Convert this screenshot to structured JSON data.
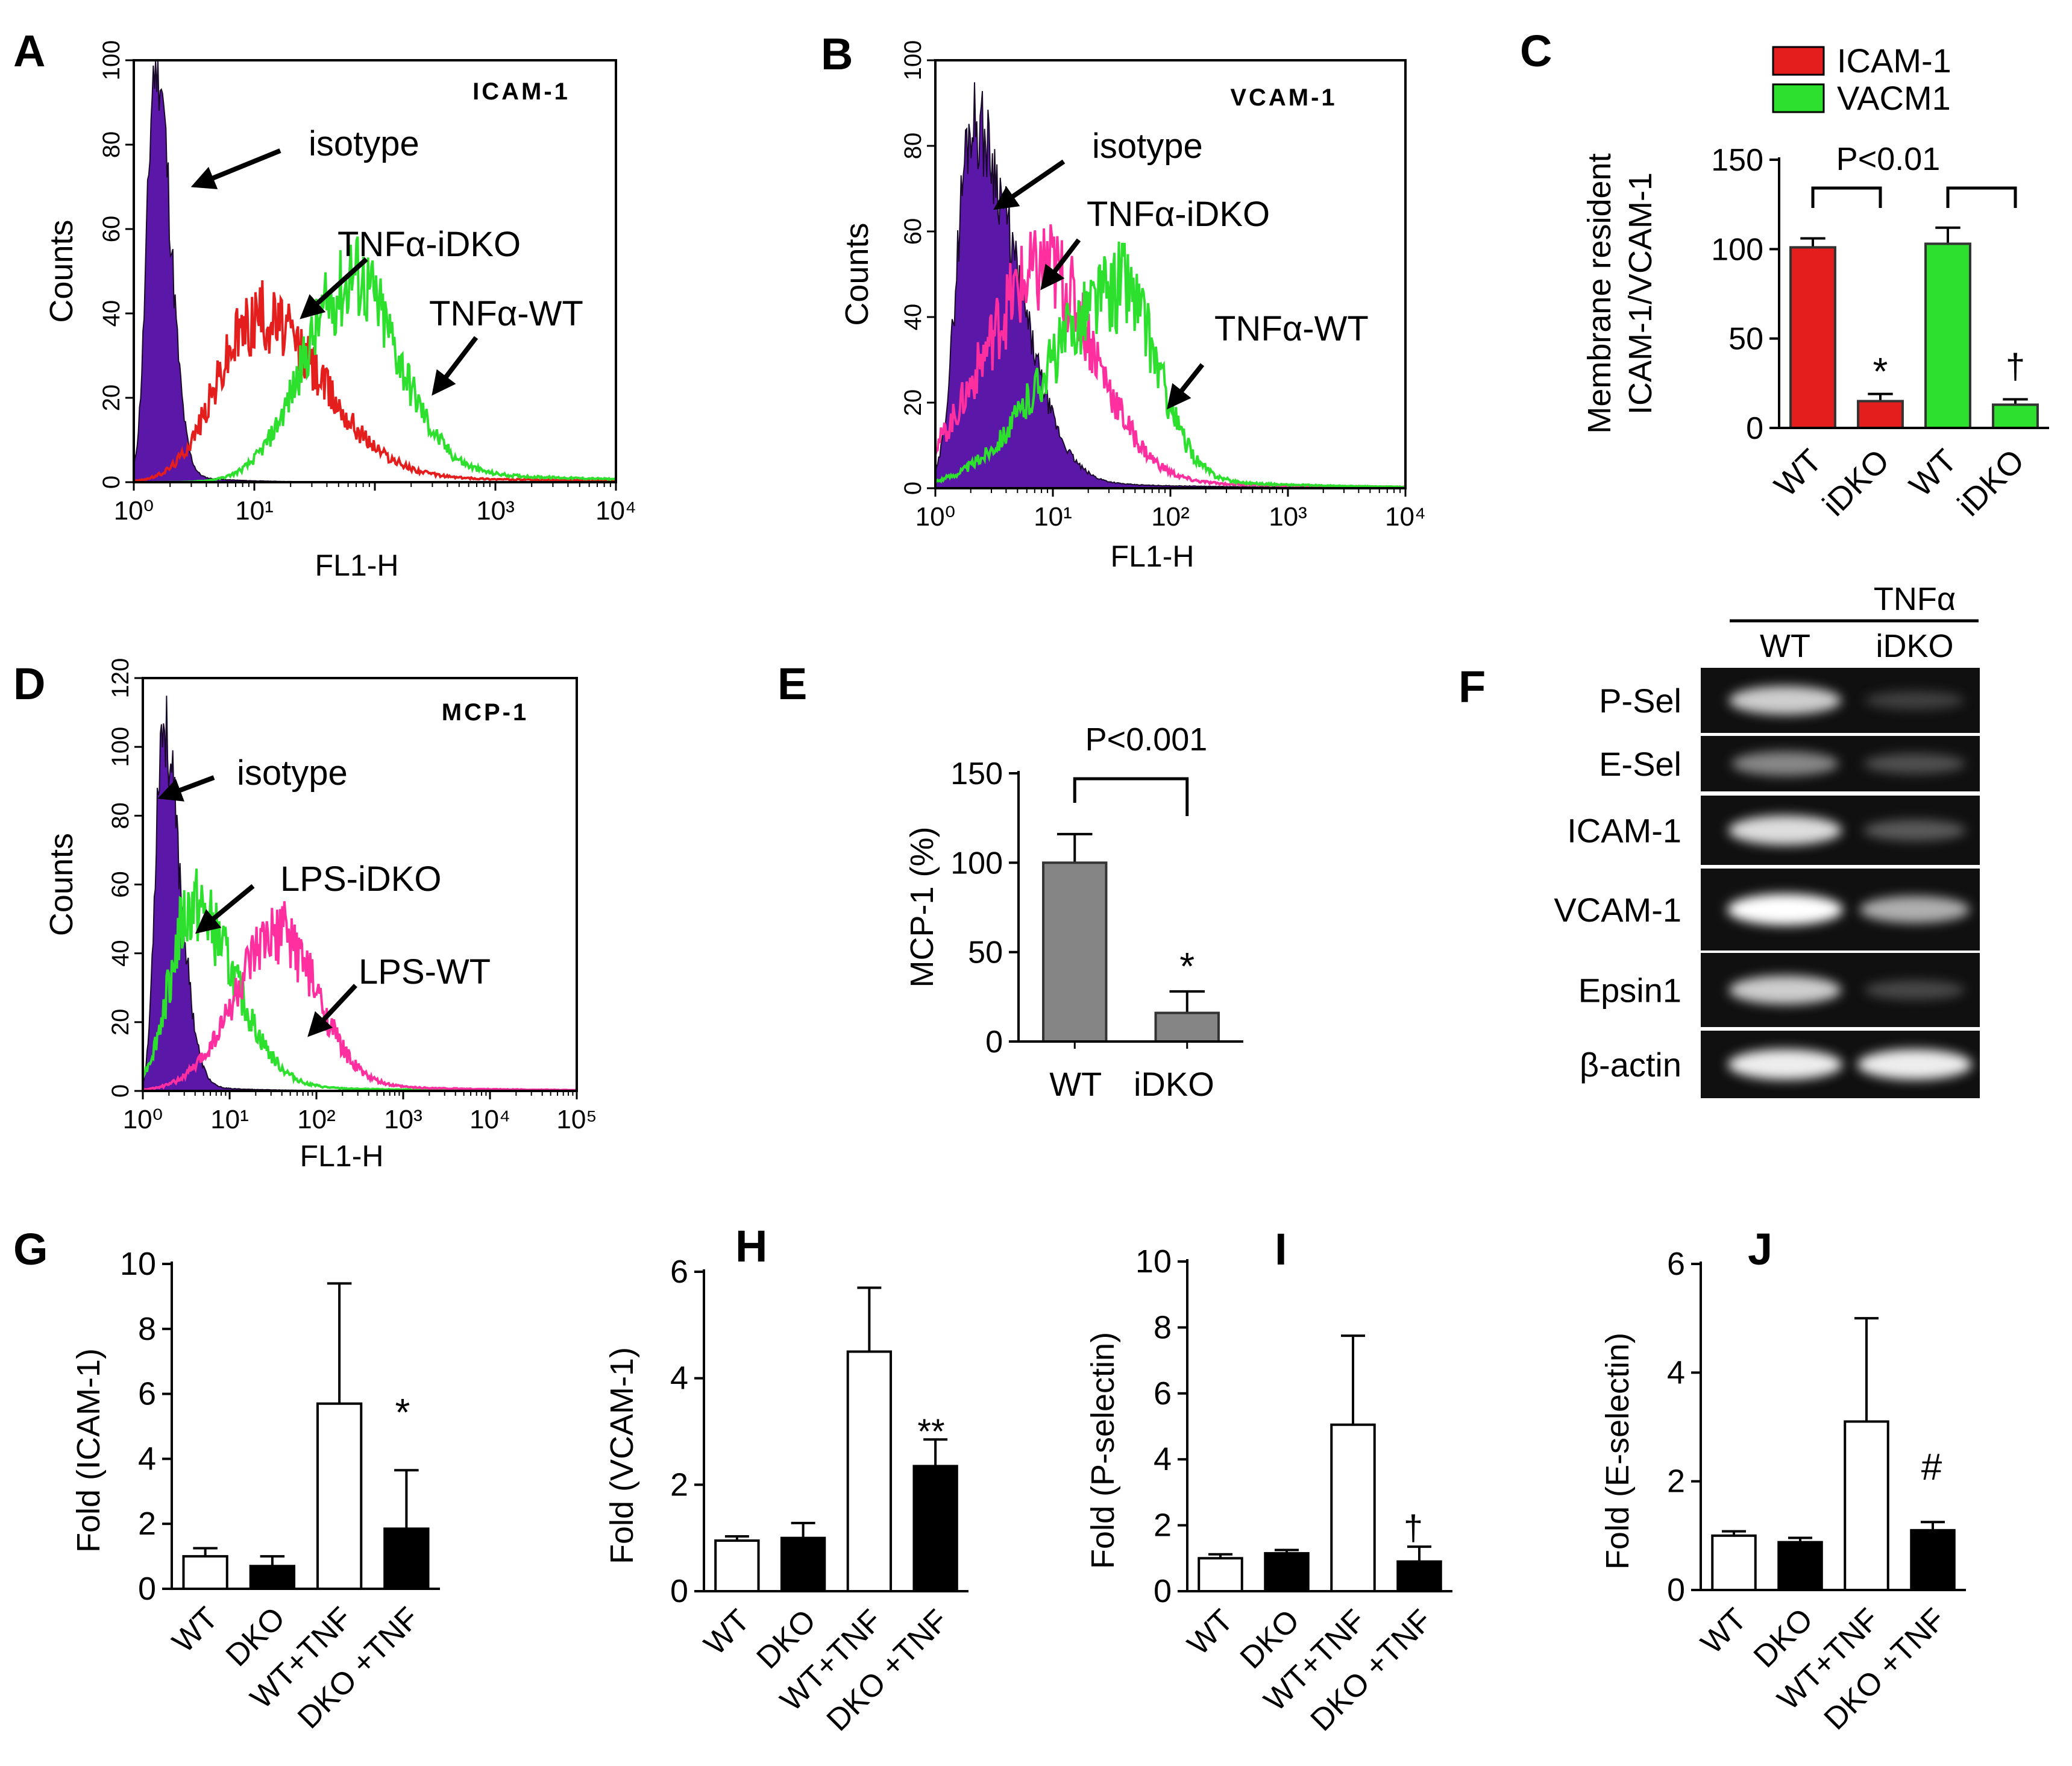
{
  "colors": {
    "isotype": "#5b17a8",
    "red": "#e41d1d",
    "green": "#2ee02e",
    "magenta": "#ff2fa0",
    "gray_bar": "#858585",
    "bar_black": "#000000",
    "bar_white": "#ffffff",
    "marker_red": "#e31a1c",
    "gel_bg": "#101010"
  },
  "chart_data": [
    {
      "id": "A",
      "type": "histogram",
      "panel_label": "A",
      "marker": "ICAM-1",
      "xlabel": "FL1-H",
      "ylabel": "Counts",
      "xscale": "log",
      "xlim": [
        1,
        10000
      ],
      "ylim": [
        0,
        100
      ],
      "xticks": [
        "10⁰",
        "10¹",
        "10³",
        "10⁴"
      ],
      "yticks": [
        "0",
        "20",
        "40",
        "60",
        "80",
        "100"
      ],
      "series": [
        {
          "name": "isotype",
          "color": "#5b17a8",
          "filled": true,
          "peak_log": 0.18,
          "peak": 100,
          "sd_left": 0.07,
          "sd_right": 0.12,
          "tail": 0.15
        },
        {
          "name": "TNFα-iDKO",
          "color": "#e41d1d",
          "filled": false,
          "peak_log": 1.0,
          "peak": 38,
          "sd_left": 0.32,
          "sd_right": 0.55,
          "tail": 0.3
        },
        {
          "name": "TNFα-WT",
          "color": "#2ee02e",
          "filled": false,
          "peak_log": 1.78,
          "peak": 46,
          "sd_left": 0.38,
          "sd_right": 0.4,
          "tail": 0.5
        }
      ],
      "annotations": [
        "isotype",
        "TNFα-iDKO",
        "TNFα-WT"
      ]
    },
    {
      "id": "B",
      "type": "histogram",
      "panel_label": "B",
      "marker": "VCAM-1",
      "xlabel": "FL1-H",
      "ylabel": "Counts",
      "xscale": "log",
      "xlim": [
        1,
        10000
      ],
      "ylim": [
        0,
        100
      ],
      "xticks": [
        "10⁰",
        "10¹",
        "10²",
        "10³",
        "10⁴"
      ],
      "yticks": [
        "0",
        "20",
        "40",
        "60",
        "80",
        "100"
      ],
      "series": [
        {
          "name": "isotype",
          "color": "#5b17a8",
          "filled": true,
          "peak_log": 0.3,
          "peak": 84,
          "sd_left": 0.12,
          "sd_right": 0.38,
          "tail": 0.15
        },
        {
          "name": "TNFα-iDKO",
          "color": "#ff2fa0",
          "filled": false,
          "peak_log": 0.9,
          "peak": 50,
          "sd_left": 0.5,
          "sd_right": 0.45,
          "tail": 0.3
        },
        {
          "name": "TNFα-WT",
          "color": "#2ee02e",
          "filled": false,
          "peak_log": 1.55,
          "peak": 46,
          "sd_left": 0.6,
          "sd_right": 0.32,
          "tail": 0.4
        }
      ],
      "annotations": [
        "isotype",
        "TNFα-iDKO",
        "TNFα-WT"
      ]
    },
    {
      "id": "C",
      "type": "bar",
      "panel_label": "C",
      "ylabel_lines": [
        "Membrane resident",
        "ICAM-1/VCAM-1"
      ],
      "categories": [
        "WT",
        "iDKO",
        "WT",
        "iDKO"
      ],
      "values": [
        101,
        15,
        103,
        13
      ],
      "errors": [
        5,
        4,
        9,
        3
      ],
      "bar_colors": [
        "#e41d1d",
        "#e41d1d",
        "#2ee02e",
        "#2ee02e"
      ],
      "ylim": [
        0,
        150
      ],
      "yticks": [
        "0",
        "50",
        "100",
        "150"
      ],
      "legend": [
        {
          "label": "ICAM-1",
          "color": "#e41d1d"
        },
        {
          "label": "VACM1",
          "color": "#2ee02e"
        }
      ],
      "bracket_label": "P<0.01",
      "sig_marks": [
        "*",
        "†"
      ]
    },
    {
      "id": "D",
      "type": "histogram",
      "panel_label": "D",
      "marker": "MCP-1",
      "xlabel": "FL1-H",
      "ylabel": "Counts",
      "xscale": "log",
      "xlim": [
        1,
        100000
      ],
      "ylim": [
        0,
        120
      ],
      "xticks": [
        "10⁰",
        "10¹",
        "10²",
        "10³",
        "10⁴",
        "10⁵"
      ],
      "yticks": [
        "0",
        "20",
        "40",
        "60",
        "80",
        "100",
        "120"
      ],
      "series": [
        {
          "name": "isotype",
          "color": "#5b17a8",
          "filled": true,
          "peak_log": 0.22,
          "peak": 105,
          "sd_left": 0.08,
          "sd_right": 0.2,
          "tail": 0.12
        },
        {
          "name": "LPS-iDKO",
          "color": "#2ee02e",
          "filled": false,
          "peak_log": 0.55,
          "peak": 52,
          "sd_left": 0.25,
          "sd_right": 0.5,
          "tail": 0.2
        },
        {
          "name": "LPS-WT",
          "color": "#ff2fa0",
          "filled": false,
          "peak_log": 1.55,
          "peak": 44,
          "sd_left": 0.5,
          "sd_right": 0.45,
          "tail": 0.35
        }
      ],
      "annotations": [
        "isotype",
        "LPS-iDKO",
        "LPS-WT"
      ]
    },
    {
      "id": "E",
      "type": "bar",
      "panel_label": "E",
      "ylabel": "MCP-1 (%)",
      "categories": [
        "WT",
        "iDKO"
      ],
      "values": [
        100,
        16
      ],
      "errors": [
        16,
        12
      ],
      "ylim": [
        0,
        150
      ],
      "yticks": [
        "0",
        "50",
        "100",
        "150"
      ],
      "bracket_label": "P<0.001",
      "sig_marks": [
        "*"
      ]
    },
    {
      "id": "F",
      "type": "gel",
      "panel_label": "F",
      "header": "TNFα",
      "lanes": [
        "WT",
        "iDKO"
      ],
      "rows": [
        {
          "label": "P-Sel",
          "wt": 0.85,
          "idko": 0.25
        },
        {
          "label": "E-Sel",
          "wt": 0.6,
          "idko": 0.35
        },
        {
          "label": "ICAM-1",
          "wt": 0.9,
          "idko": 0.4
        },
        {
          "label": "VCAM-1",
          "wt": 1.0,
          "idko": 0.75
        },
        {
          "label": "Epsin1",
          "wt": 0.85,
          "idko": 0.3
        },
        {
          "label": "β-actin",
          "wt": 0.95,
          "idko": 0.95
        }
      ]
    },
    {
      "id": "G",
      "type": "bar",
      "panel_label": "G",
      "ylabel": "Fold  (ICAM-1)",
      "categories": [
        "WT",
        "DKO",
        "WT+TNF",
        "DKO +TNF"
      ],
      "values": [
        1.0,
        0.7,
        5.7,
        1.85
      ],
      "errors": [
        0.25,
        0.3,
        3.7,
        1.8
      ],
      "fills": [
        "white",
        "black",
        "white",
        "black"
      ],
      "ylim": [
        0,
        10
      ],
      "yticks": [
        "0",
        "2",
        "4",
        "6",
        "8",
        "10"
      ],
      "sig": "*"
    },
    {
      "id": "H",
      "type": "bar",
      "panel_label": "H",
      "ylabel": "Fold  (VCAM-1)",
      "categories": [
        "WT",
        "DKO",
        "WT+TNF",
        "DKO +TNF"
      ],
      "values": [
        0.95,
        1.0,
        4.5,
        2.35
      ],
      "errors": [
        0.08,
        0.28,
        1.2,
        0.5
      ],
      "fills": [
        "white",
        "black",
        "white",
        "black"
      ],
      "ylim": [
        0,
        6
      ],
      "yticks": [
        "0",
        "2",
        "4",
        "6"
      ],
      "sig": "**"
    },
    {
      "id": "I",
      "type": "bar",
      "panel_label": "I",
      "ylabel": "Fold  (P-selectin)",
      "categories": [
        "WT",
        "DKO",
        "WT+TNF",
        "DKO +TNF"
      ],
      "values": [
        1.0,
        1.15,
        5.05,
        0.9
      ],
      "errors": [
        0.12,
        0.1,
        2.7,
        0.45
      ],
      "fills": [
        "white",
        "black",
        "white",
        "black"
      ],
      "ylim": [
        0,
        10
      ],
      "yticks": [
        "0",
        "2",
        "4",
        "6",
        "8",
        "10"
      ],
      "sig": "†"
    },
    {
      "id": "J",
      "type": "bar",
      "panel_label": "J",
      "ylabel": "Fold  (E-selectin)",
      "categories": [
        "WT",
        "DKO",
        "WT+TNF",
        "DKO +TNF"
      ],
      "values": [
        1.0,
        0.88,
        3.1,
        1.1
      ],
      "errors": [
        0.08,
        0.08,
        1.9,
        0.15
      ],
      "fills": [
        "white",
        "black",
        "white",
        "black"
      ],
      "ylim": [
        0,
        6
      ],
      "yticks": [
        "0",
        "2",
        "4",
        "6"
      ],
      "sig": "#"
    }
  ]
}
